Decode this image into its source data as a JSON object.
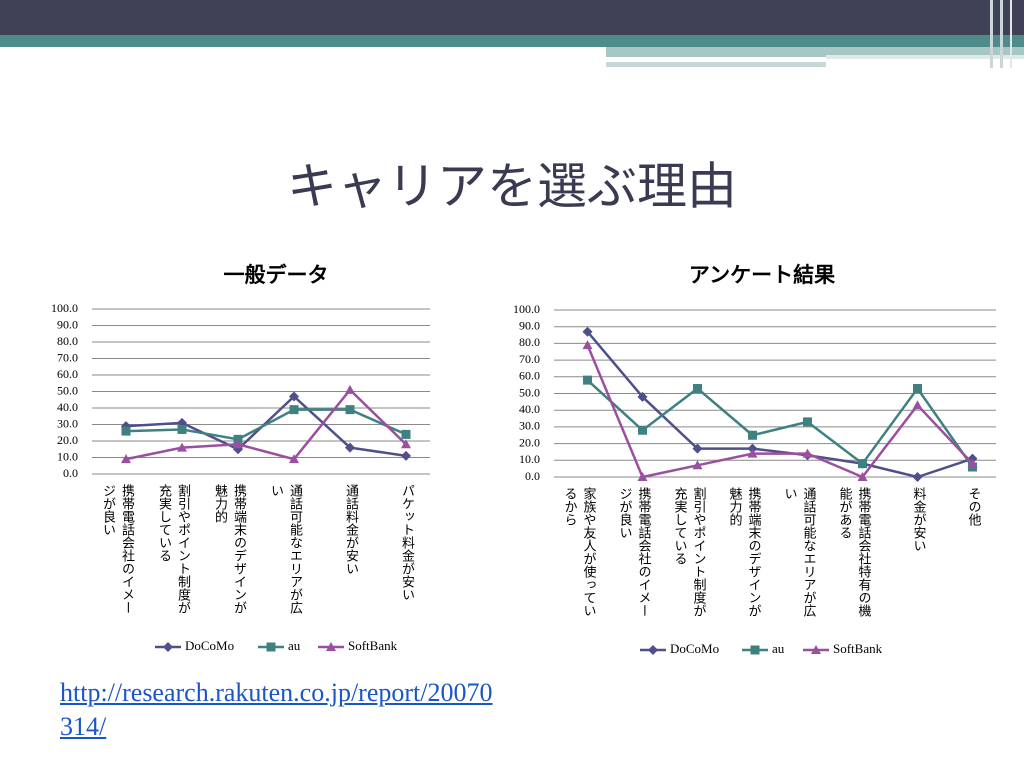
{
  "title": "キャリアを選ぶ理由",
  "link": "http://research.rakuten.co.jp/report/20070314/",
  "chart_data": [
    {
      "type": "line",
      "title": "一般データ",
      "categories": [
        "携帯電話会社のイメージが良い",
        "割引やポイント制度が充実している",
        "携帯端末のデザインが魅力的",
        "通話可能なエリアが広い",
        "通話料金が安い",
        "パケット料金が安い"
      ],
      "series": [
        {
          "name": "DoCoMo",
          "color": "#4f4f8a",
          "values": [
            29,
            31,
            15,
            47,
            16,
            11
          ]
        },
        {
          "name": "au",
          "color": "#3f8080",
          "values": [
            26,
            27,
            21,
            39,
            39,
            24
          ]
        },
        {
          "name": "SoftBank",
          "color": "#9b4fa0",
          "values": [
            9,
            16,
            18,
            9,
            51,
            18
          ]
        }
      ],
      "ylim": [
        0,
        100
      ],
      "yticks": [
        {
          "value": 0,
          "label": "0.0"
        },
        {
          "value": 10,
          "label": "10.0"
        },
        {
          "value": 20,
          "label": "20.0"
        },
        {
          "value": 30,
          "label": "30.0"
        },
        {
          "value": 40,
          "label": "40.0"
        },
        {
          "value": 50,
          "label": "50.0"
        },
        {
          "value": 60,
          "label": "60.0"
        },
        {
          "value": 70,
          "label": "70.0"
        },
        {
          "value": 80,
          "label": "80.0"
        },
        {
          "value": 90,
          "label": "90.0"
        },
        {
          "value": 100,
          "label": "100.0"
        }
      ],
      "grid": true,
      "legend": "bottom"
    },
    {
      "type": "line",
      "title": "アンケート結果",
      "categories": [
        "家族や友人が使っているから",
        "携帯電話会社のイメージが良い",
        "割引やポイント制度が充実している",
        "携帯端末のデザインが魅力的",
        "通話可能なエリアが広い",
        "携帯電話会社特有の機能がある",
        "料金が安い",
        "その他"
      ],
      "series": [
        {
          "name": "DoCoMo",
          "color": "#4f4f8a",
          "values": [
            87,
            48,
            17,
            17,
            13,
            8,
            0,
            11
          ]
        },
        {
          "name": "au",
          "color": "#3f8080",
          "values": [
            58,
            28,
            53,
            25,
            33,
            8,
            53,
            6
          ]
        },
        {
          "name": "SoftBank",
          "color": "#9b4fa0",
          "values": [
            79,
            0,
            7,
            14,
            14,
            0,
            43,
            8
          ]
        }
      ],
      "ylim": [
        0,
        100
      ],
      "yticks": [
        {
          "value": 0,
          "label": "0.0"
        },
        {
          "value": 10,
          "label": "10.0"
        },
        {
          "value": 20,
          "label": "20.0"
        },
        {
          "value": 30,
          "label": "30.0"
        },
        {
          "value": 40,
          "label": "40.0"
        },
        {
          "value": 50,
          "label": "50.0"
        },
        {
          "value": 60,
          "label": "60.0"
        },
        {
          "value": 70,
          "label": "70.0"
        },
        {
          "value": 80,
          "label": "80.0"
        },
        {
          "value": 90,
          "label": "90.0"
        },
        {
          "value": 100,
          "label": "100.0"
        }
      ],
      "grid": true,
      "legend": "bottom"
    }
  ]
}
